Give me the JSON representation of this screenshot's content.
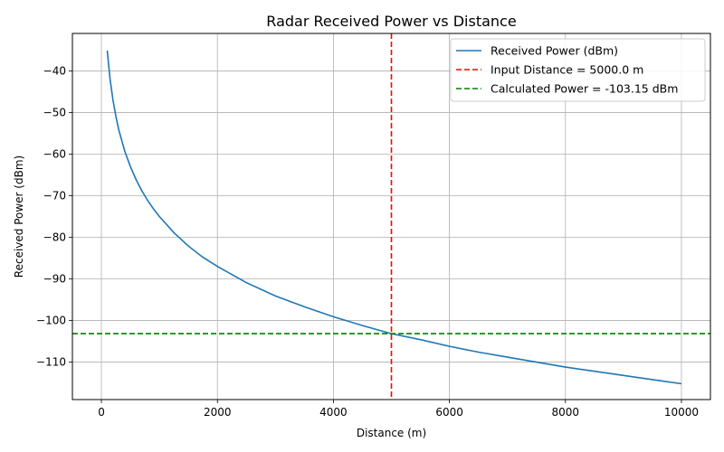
{
  "chart_data": {
    "type": "line",
    "title": "Radar Received Power vs Distance",
    "xlabel": "Distance (m)",
    "ylabel": "Received Power (dBm)",
    "xlim": [
      -500,
      10500
    ],
    "ylim": [
      -119,
      -31
    ],
    "xticks": [
      0,
      2000,
      4000,
      6000,
      8000,
      10000
    ],
    "yticks": [
      -110,
      -100,
      -90,
      -80,
      -70,
      -60,
      -50,
      -40
    ],
    "grid": true,
    "legend_position": "top-right",
    "series": [
      {
        "name": "Received Power (dBm)",
        "color": "#1f77b4",
        "style": "solid",
        "points": [
          [
            100,
            -35.1
          ],
          [
            150,
            -42.1
          ],
          [
            200,
            -47.1
          ],
          [
            250,
            -51.0
          ],
          [
            300,
            -54.2
          ],
          [
            400,
            -59.2
          ],
          [
            500,
            -63.0
          ],
          [
            600,
            -66.2
          ],
          [
            700,
            -68.9
          ],
          [
            800,
            -71.2
          ],
          [
            900,
            -73.2
          ],
          [
            1000,
            -75.0
          ],
          [
            1250,
            -78.9
          ],
          [
            1500,
            -82.1
          ],
          [
            1750,
            -84.8
          ],
          [
            2000,
            -87.0
          ],
          [
            2500,
            -90.9
          ],
          [
            3000,
            -94.1
          ],
          [
            3500,
            -96.7
          ],
          [
            4000,
            -99.1
          ],
          [
            4500,
            -101.2
          ],
          [
            5000,
            -103.15
          ],
          [
            5500,
            -104.6
          ],
          [
            6000,
            -106.2
          ],
          [
            6500,
            -107.6
          ],
          [
            7000,
            -108.8
          ],
          [
            7500,
            -110.0
          ],
          [
            8000,
            -111.2
          ],
          [
            8500,
            -112.2
          ],
          [
            9000,
            -113.2
          ],
          [
            9500,
            -114.2
          ],
          [
            10000,
            -115.2
          ]
        ]
      }
    ],
    "reference_lines": [
      {
        "name": "Input Distance = 5000.0 m",
        "orientation": "vertical",
        "value": 5000,
        "color": "#ff0000",
        "style": "dashed"
      },
      {
        "name": "Calculated Power = -103.15 dBm",
        "orientation": "horizontal",
        "value": -103.15,
        "color": "#008000",
        "style": "dashed"
      }
    ]
  }
}
